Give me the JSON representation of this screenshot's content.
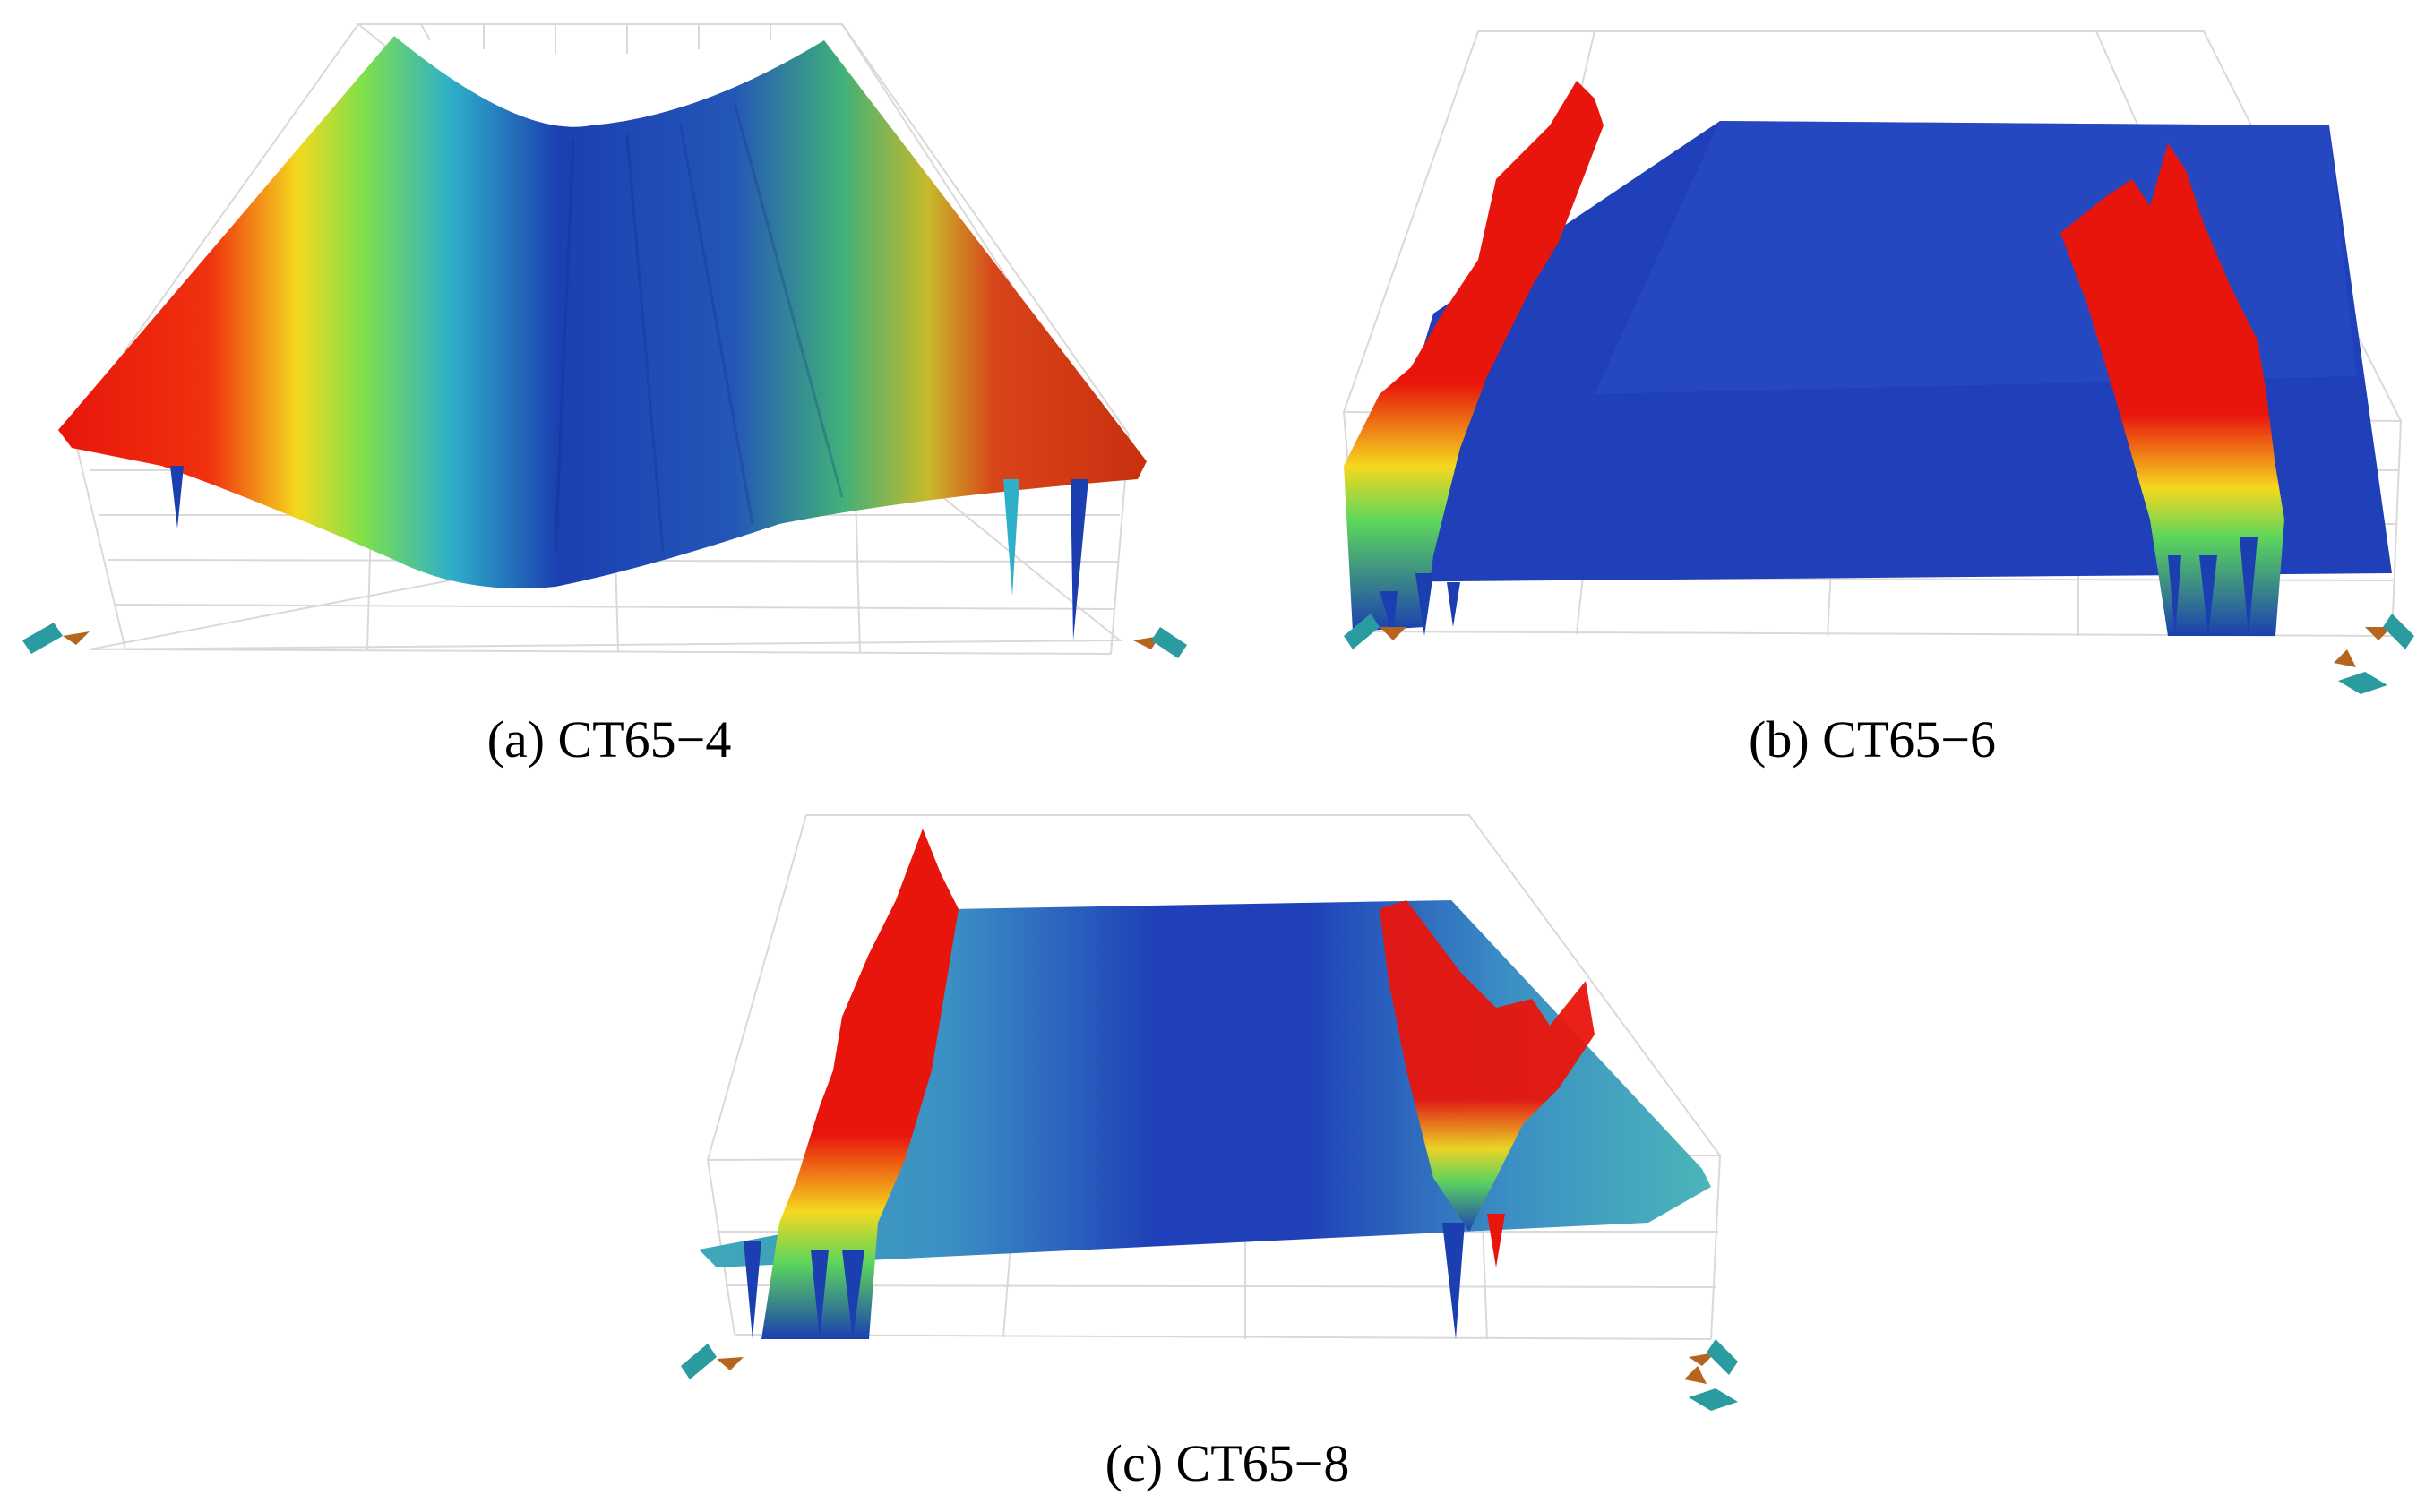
{
  "figure": {
    "panels": [
      {
        "id": "a",
        "caption": "(a) CT65−4"
      },
      {
        "id": "b",
        "caption": "(b) CT65−6"
      },
      {
        "id": "c",
        "caption": "(c) CT65−8"
      }
    ]
  },
  "colors": {
    "high": "#e8150c",
    "mid_high": "#f5d81e",
    "mid": "#5cd65c",
    "mid_low": "#2fb0c8",
    "low": "#1b3fb0",
    "grid": "#d8d8d8",
    "nav_teal": "#2a9c9f",
    "nav_brown": "#b5651d"
  },
  "icons": [
    "navigation-arrows-icon"
  ]
}
